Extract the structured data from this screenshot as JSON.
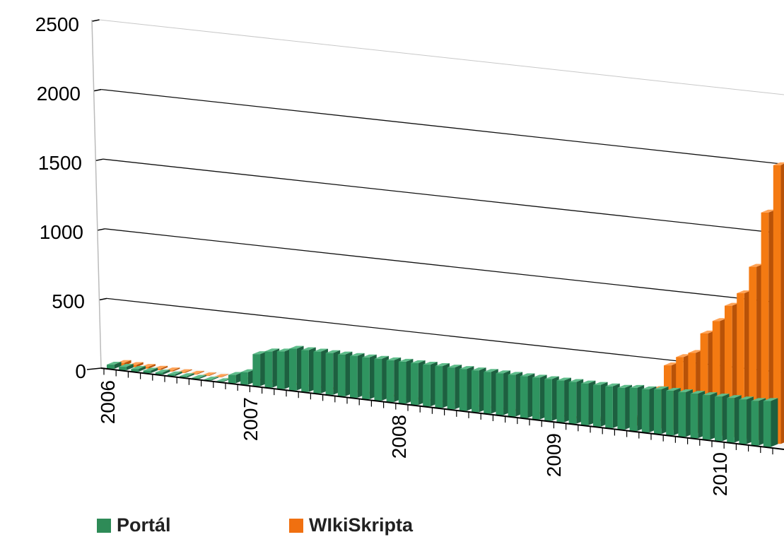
{
  "chart_data": {
    "type": "bar",
    "subtype": "3d-column-time-series",
    "title": "",
    "xlabel": "",
    "ylabel": "",
    "ylim": [
      0,
      2500
    ],
    "yticks": [
      "0",
      "500",
      "1000",
      "1500",
      "2000",
      "2500"
    ],
    "xticks": [
      "2006",
      "2007",
      "2008",
      "2009",
      "2010"
    ],
    "grid": "horizontal",
    "legend_position": "bottom-left",
    "series": [
      {
        "name": "Portál",
        "color": "#2e8b57",
        "values": [
          30,
          25,
          20,
          18,
          15,
          12,
          10,
          8,
          6,
          5,
          60,
          90,
          230,
          260,
          270,
          300,
          300,
          300,
          300,
          300,
          300,
          300,
          300,
          300,
          300,
          300,
          300,
          300,
          300,
          300,
          300,
          300,
          300,
          300,
          300,
          300,
          300,
          300,
          300,
          300,
          300,
          300,
          300,
          310,
          310,
          320,
          320,
          320,
          320,
          320,
          320,
          320,
          320,
          320,
          330
        ]
      },
      {
        "name": "WIkiSkripta",
        "color": "#f07010",
        "values": [
          20,
          16,
          13,
          10,
          8,
          6,
          5,
          4,
          3,
          2,
          1,
          1,
          1,
          1,
          1,
          1,
          1,
          1,
          1,
          1,
          1,
          1,
          1,
          1,
          1,
          1,
          1,
          1,
          1,
          1,
          1,
          1,
          1,
          1,
          1,
          1,
          1,
          1,
          5,
          20,
          0,
          0,
          60,
          180,
          290,
          470,
          540,
          580,
          730,
          830,
          950,
          1050,
          1250,
          1650,
          2000
        ]
      }
    ]
  }
}
